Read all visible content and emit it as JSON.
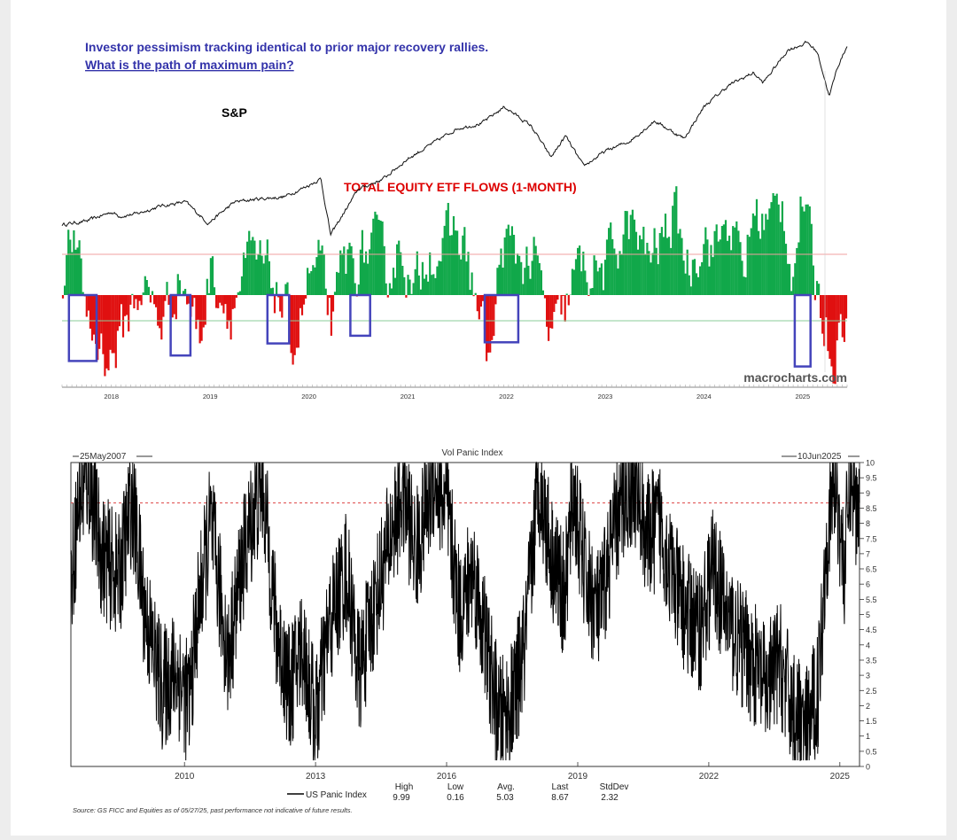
{
  "colors": {
    "headline": "#3333aa",
    "sp_line": "#111111",
    "flows_title": "#dd0000",
    "flow_positive": "#11a84a",
    "flow_negative": "#e01010",
    "box": "#4444bb",
    "ref_red": "#f2a0a0",
    "ref_green": "#88cc99",
    "panic_line": "#000000",
    "panic_threshold": "#dd4444"
  },
  "chart_data": [
    {
      "type": "line",
      "panel": "top",
      "headline": [
        "Investor pessimism tracking identical to prior major recovery rallies.",
        "What is the path of maximum pain?"
      ],
      "watermark": "macrocharts.com",
      "x_ticks": [
        "2018",
        "2019",
        "2020",
        "2021",
        "2022",
        "2023",
        "2024",
        "2025"
      ],
      "series": [
        {
          "name": "S&P",
          "x": [
            2017.5,
            2017.75,
            2018.0,
            2018.08,
            2018.25,
            2018.5,
            2018.75,
            2018.98,
            2019.25,
            2019.5,
            2019.75,
            2020.0,
            2020.12,
            2020.22,
            2020.5,
            2020.75,
            2021.0,
            2021.25,
            2021.5,
            2021.75,
            2021.98,
            2022.25,
            2022.45,
            2022.6,
            2022.78,
            2023.0,
            2023.25,
            2023.5,
            2023.8,
            2024.0,
            2024.25,
            2024.5,
            2024.6,
            2024.85,
            2025.05,
            2025.15,
            2025.27,
            2025.35,
            2025.45
          ],
          "y": [
            2450,
            2520,
            2700,
            2620,
            2660,
            2820,
            2900,
            2480,
            2900,
            2960,
            3000,
            3230,
            3360,
            2250,
            3150,
            3350,
            3750,
            4050,
            4350,
            4450,
            4780,
            4400,
            3780,
            4200,
            3600,
            3900,
            4100,
            4500,
            4150,
            4780,
            5200,
            5450,
            5250,
            5900,
            6050,
            5850,
            4980,
            5550,
            5980
          ]
        },
        {
          "name": "TOTAL EQUITY ETF FLOWS (1-MONTH)",
          "type": "bar",
          "x_range": [
            2017.5,
            2025.45
          ],
          "y_range": [
            -1.45,
            2.45
          ],
          "red_threshold": 0.7,
          "green_threshold": -0.45,
          "anchors_x": [
            2017.5,
            2017.6,
            2017.8,
            2018.0,
            2018.3,
            2018.5,
            2018.7,
            2018.9,
            2019.0,
            2019.2,
            2019.4,
            2019.6,
            2019.75,
            2019.85,
            2020.0,
            2020.1,
            2020.25,
            2020.35,
            2020.5,
            2020.65,
            2020.8,
            2020.95,
            2021.05,
            2021.2,
            2021.35,
            2021.5,
            2021.6,
            2021.75,
            2021.85,
            2021.95,
            2022.1,
            2022.3,
            2022.42,
            2022.55,
            2022.7,
            2022.85,
            2023.0,
            2023.1,
            2023.25,
            2023.4,
            2023.55,
            2023.7,
            2023.85,
            2024.0,
            2024.1,
            2024.25,
            2024.4,
            2024.5,
            2024.65,
            2024.8,
            2024.9,
            2025.0,
            2025.12,
            2025.22,
            2025.3,
            2025.45
          ],
          "anchors_y": [
            0.3,
            1.1,
            -0.7,
            -1.15,
            0.2,
            -0.5,
            0.4,
            -0.8,
            0.5,
            -0.3,
            0.6,
            0.4,
            -0.3,
            -0.9,
            0.3,
            0.5,
            -0.6,
            0.6,
            0.6,
            0.9,
            0.4,
            1.0,
            -0.2,
            0.9,
            0.8,
            1.2,
            0.7,
            -0.6,
            -1.25,
            1.0,
            0.7,
            0.6,
            -0.7,
            -0.6,
            0.4,
            0.5,
            0.4,
            0.9,
            1.3,
            0.7,
            0.9,
            1.5,
            0.5,
            1.2,
            0.8,
            1.4,
            0.4,
            1.5,
            1.3,
            1.7,
            0.4,
            1.8,
            0.3,
            -0.4,
            -1.1,
            -0.2
          ],
          "boxes": [
            [
              2017.57,
              2017.85
            ],
            [
              2018.6,
              2018.8
            ],
            [
              2019.58,
              2019.8
            ],
            [
              2020.42,
              2020.62
            ],
            [
              2021.78,
              2022.12
            ],
            [
              2024.92,
              2025.08
            ]
          ]
        }
      ]
    },
    {
      "type": "line",
      "panel": "bottom",
      "title": "Vol Panic Index",
      "start_label": "25May2007",
      "end_label": "10Jun2025",
      "x_range": [
        2007.4,
        2025.45
      ],
      "ylim": [
        0,
        10
      ],
      "y_ticks": [
        "0",
        "0.5",
        "1",
        "1.5",
        "2",
        "2.5",
        "3",
        "3.5",
        "4",
        "4.5",
        "5",
        "5.5",
        "6",
        "6.5",
        "7",
        "7.5",
        "8",
        "8.5",
        "9",
        "9.5",
        "10"
      ],
      "x_ticks": [
        "2010",
        "2013",
        "2016",
        "2019",
        "2022",
        "2025"
      ],
      "threshold": 8.67,
      "series": [
        {
          "name": "US Panic Index",
          "x": [
            2007.4,
            2007.6,
            2007.8,
            2008.1,
            2008.5,
            2008.8,
            2009.1,
            2009.5,
            2009.8,
            2010.1,
            2010.3,
            2010.6,
            2011.0,
            2011.3,
            2011.6,
            2011.8,
            2012.1,
            2012.4,
            2012.7,
            2013.0,
            2013.3,
            2013.7,
            2014.0,
            2014.3,
            2014.7,
            2015.0,
            2015.3,
            2015.7,
            2016.0,
            2016.3,
            2016.6,
            2016.9,
            2017.2,
            2017.5,
            2017.8,
            2018.1,
            2018.4,
            2018.7,
            2018.9,
            2019.2,
            2019.5,
            2019.8,
            2020.1,
            2020.3,
            2020.6,
            2020.9,
            2021.2,
            2021.5,
            2021.8,
            2022.1,
            2022.4,
            2022.7,
            2023.0,
            2023.3,
            2023.6,
            2023.9,
            2024.2,
            2024.5,
            2024.7,
            2024.9,
            2025.1,
            2025.25,
            2025.35,
            2025.45
          ],
          "y": [
            6.0,
            8.9,
            9.6,
            7.0,
            6.2,
            8.8,
            5.0,
            2.5,
            3.2,
            2.0,
            5.0,
            8.0,
            3.5,
            6.5,
            8.5,
            9.2,
            4.5,
            2.5,
            4.0,
            1.5,
            4.5,
            6.5,
            3.0,
            5.0,
            7.5,
            9.0,
            7.0,
            9.5,
            8.5,
            5.0,
            6.5,
            4.0,
            1.5,
            2.0,
            4.0,
            9.5,
            7.0,
            5.5,
            9.0,
            6.0,
            5.0,
            7.5,
            9.0,
            9.3,
            7.5,
            8.0,
            6.0,
            5.0,
            4.5,
            6.5,
            5.0,
            4.0,
            3.5,
            2.5,
            3.5,
            2.0,
            1.0,
            2.5,
            7.5,
            9.5,
            6.5,
            9.8,
            8.5,
            8.67
          ]
        }
      ],
      "stats": {
        "headers": [
          "High",
          "Low",
          "Avg.",
          "Last",
          "StdDev"
        ],
        "values": [
          "9.99",
          "0.16",
          "5.03",
          "8.67",
          "2.32"
        ]
      },
      "source": "Source: GS FICC and Equities as of 05/27/25, past performance not indicative of future results."
    }
  ]
}
